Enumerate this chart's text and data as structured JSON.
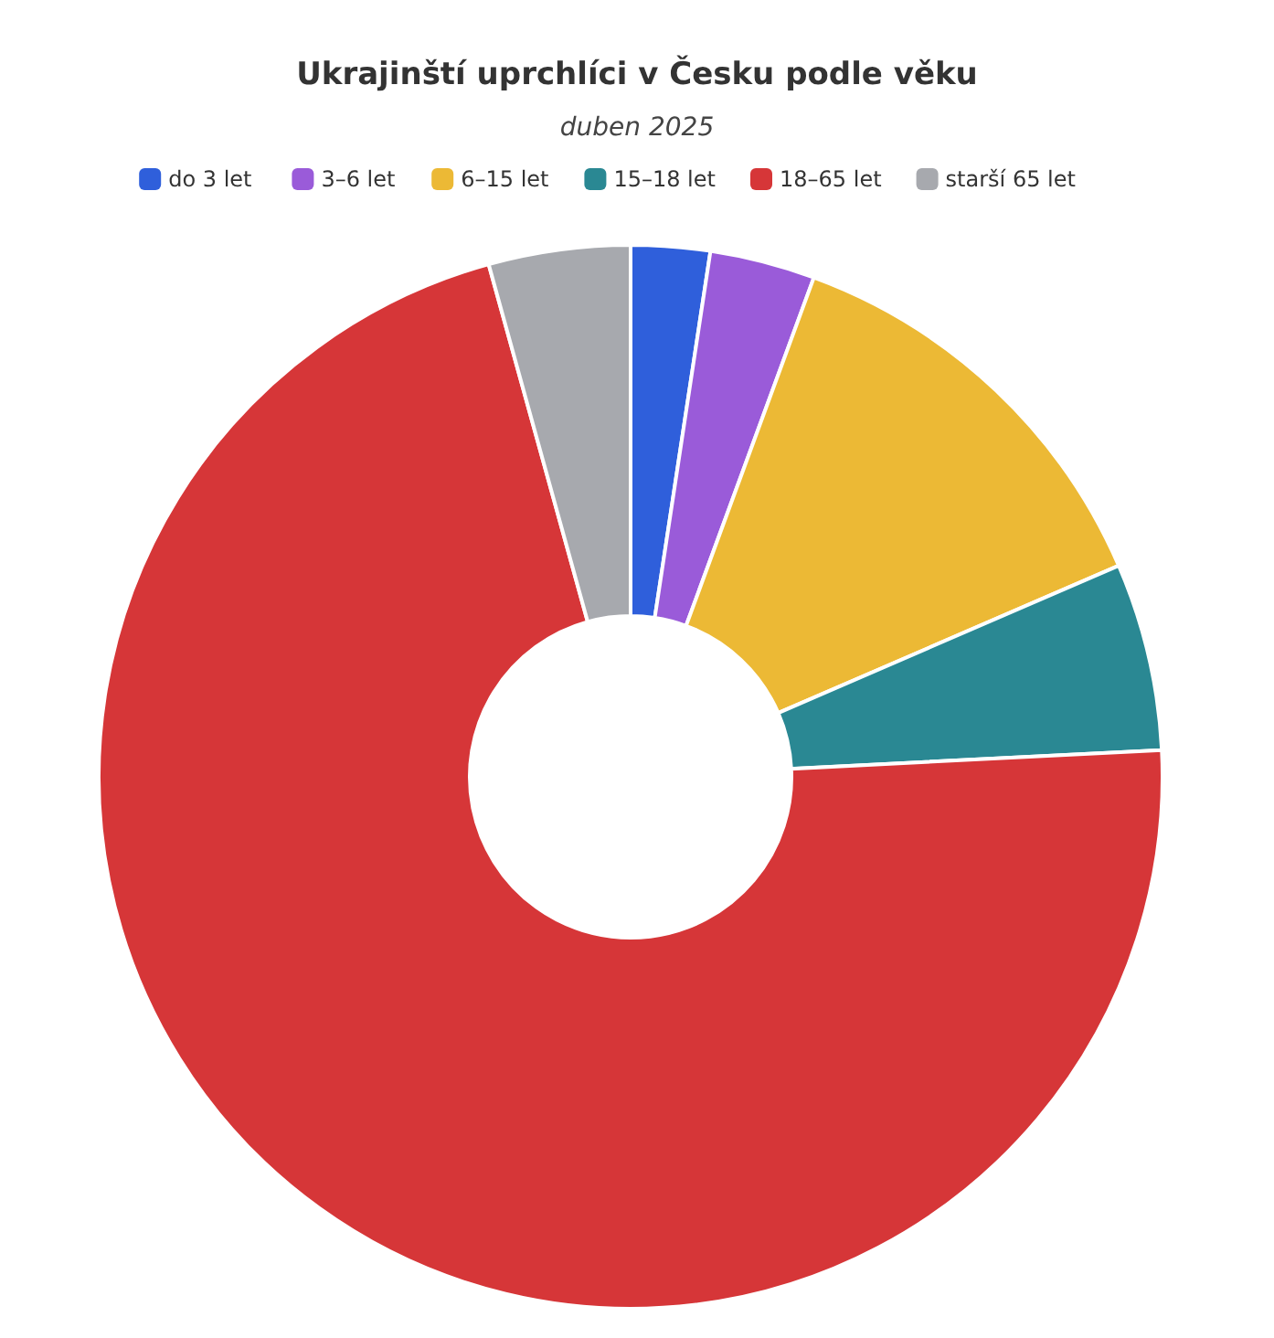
{
  "chart_data": {
    "type": "donut",
    "title": "Ukrajinští uprchlíci v Česku podle věku",
    "subtitle": "duben 2025",
    "categories": [
      "do 3 let",
      "3–6 let",
      "6–15 let",
      "15–18 let",
      "18–65 let",
      "starší 65 let"
    ],
    "values": [
      2.4,
      3.2,
      12.9,
      5.7,
      71.5,
      4.3
    ],
    "colors": [
      "#2f5fdb",
      "#9a5bd9",
      "#ecb935",
      "#2a8893",
      "#d63638",
      "#a7a9ae"
    ],
    "legend": "top"
  }
}
